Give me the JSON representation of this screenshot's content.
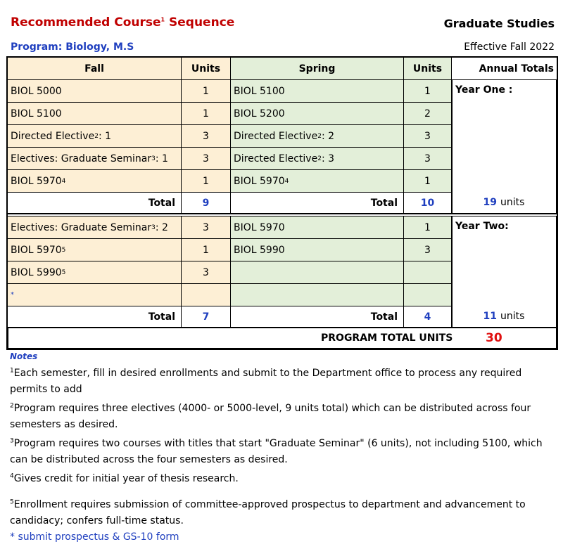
{
  "header": {
    "title": "Recommended Course",
    "title_sup": "1",
    "title_end": " Sequence",
    "org": "Graduate Studies",
    "program": "Program: Biology, M.S",
    "effective": "Effective Fall 2022"
  },
  "table": {
    "headers": [
      "Fall",
      "Units",
      "Spring",
      "Units",
      "Annual Totals"
    ],
    "total_label": "Total",
    "units_word": "units",
    "years": [
      {
        "label": "Year One :",
        "fall": [
          {
            "name": "BIOL 5000",
            "units": 1
          },
          {
            "name": "BIOL 5100",
            "units": 1
          },
          {
            "name": "Directed Elective",
            "sup": "2",
            "suffix": ": 1",
            "units": 3
          },
          {
            "name": "Electives: Graduate Seminar",
            "sup": "3",
            "suffix": ": 1",
            "units": 3
          },
          {
            "name": "BIOL 5970",
            "sup": "4",
            "units": 1
          }
        ],
        "spring": [
          {
            "name": "BIOL 5100",
            "units": 1
          },
          {
            "name": "BIOL 5200",
            "units": 2
          },
          {
            "name": "Directed Elective",
            "sup": "2",
            "suffix": ": 2",
            "units": 3
          },
          {
            "name": "Directed Elective",
            "sup": "2",
            "suffix": ": 3",
            "units": 3
          },
          {
            "name": "BIOL 5970",
            "sup": "4",
            "units": 1
          }
        ],
        "fall_total": 9,
        "spring_total": 10,
        "annual_total": 19
      },
      {
        "label": "Year Two:",
        "fall": [
          {
            "name": "Electives: Graduate Seminar",
            "sup": "3",
            "suffix": ": 2",
            "units": 3
          },
          {
            "name": "BIOL 5970",
            "sup": "5",
            "units": 1
          },
          {
            "name": "BIOL 5990",
            "sup": "5",
            "units": 3
          },
          {
            "name": "*"
          }
        ],
        "spring": [
          {
            "name": "BIOL 5970",
            "units": 1
          },
          {
            "name": "BIOL 5990",
            "units": 3
          }
        ],
        "fall_total": 7,
        "spring_total": 4,
        "annual_total": 11
      }
    ],
    "program_total_label": "PROGRAM TOTAL UNITS",
    "program_total": 30
  },
  "notes": {
    "title": "Notes",
    "items": [
      {
        "sup": "1",
        "text": "Each semester, fill in desired enrollments and submit to the Department office to process any required permits to add"
      },
      {
        "sup": "2",
        "text": "Program requires three electives (4000- or 5000-level, 9 units total) which can be distributed across four semesters as desired."
      },
      {
        "sup": "3",
        "text": "Program requires two courses with titles that start \"Graduate Seminar\" (6 units), not including 5100, which can be distributed across the four semesters as desired."
      },
      {
        "sup": "4",
        "text": "Gives credit for initial year of thesis research."
      },
      {
        "sup": "5",
        "text": "Enrollment requires submission of committee-approved prospectus to department and advancement to candidacy; confers full-time status."
      }
    ],
    "star": "* submit prospectus & GS-10 form"
  }
}
